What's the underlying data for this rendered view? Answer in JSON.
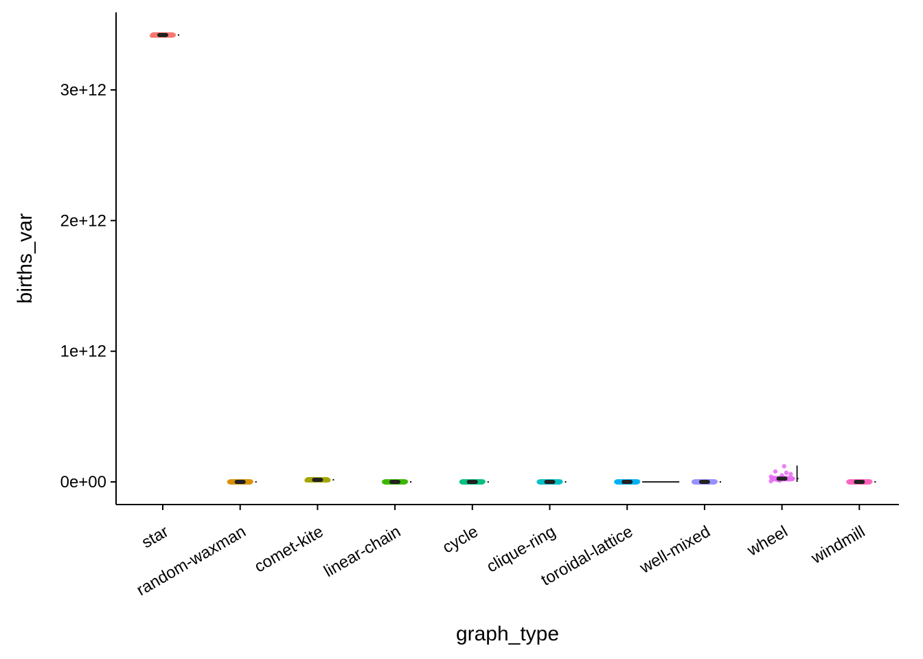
{
  "chart_data": {
    "type": "scatter",
    "title": "",
    "xlabel": "graph_type",
    "ylabel": "births_var",
    "ylim": [
      -175000000000.0,
      3600000000000.0
    ],
    "y_ticks": [
      0,
      1000000000000.0,
      2000000000000.0,
      3000000000000.0
    ],
    "y_tick_labels": [
      "0e+00",
      "1e+12",
      "2e+12",
      "3e+12"
    ],
    "grid": false,
    "legend": "none",
    "categories": [
      "star",
      "random-waxman",
      "comet-kite",
      "linear-chain",
      "cycle",
      "clique-ring",
      "toroidal-lattice",
      "well-mixed",
      "wheel",
      "windmill"
    ],
    "colors": [
      "#F8766D",
      "#D89000",
      "#A3A500",
      "#39B600",
      "#00BF7D",
      "#00BFC4",
      "#00B0F6",
      "#9590FF",
      "#E76BF3",
      "#FF62BC"
    ],
    "medians": [
      3420000000000.0,
      0,
      16000000000.0,
      0,
      0,
      0,
      0,
      0,
      25000000000.0,
      0
    ],
    "points": [
      [
        3415000000000.0,
        3418000000000.0,
        3420000000000.0,
        3421000000000.0,
        3423000000000.0,
        3419000000000.0,
        3422000000000.0,
        3417000000000.0,
        3420000000000.0,
        3424000000000.0
      ],
      [
        0,
        1000000000.0,
        2000000000.0,
        500000000.0,
        1500000000.0,
        0,
        1000000000.0,
        3000000000.0,
        2000000000.0,
        500000000.0
      ],
      [
        12000000000.0,
        15000000000.0,
        18000000000.0,
        16000000000.0,
        20000000000.0,
        14000000000.0,
        17000000000.0,
        19000000000.0,
        13000000000.0,
        22000000000.0
      ],
      [
        0,
        1000000000.0,
        2000000000.0,
        500000000.0,
        1500000000.0,
        0,
        1000000000.0,
        3000000000.0,
        2000000000.0,
        500000000.0
      ],
      [
        0,
        1000000000.0,
        2000000000.0,
        500000000.0,
        1500000000.0,
        0,
        1000000000.0,
        3000000000.0,
        2000000000.0,
        500000000.0
      ],
      [
        0,
        1000000000.0,
        2000000000.0,
        500000000.0,
        1500000000.0,
        0,
        1000000000.0,
        3000000000.0,
        2000000000.0,
        500000000.0
      ],
      [
        0,
        1000000000.0,
        2000000000.0,
        500000000.0,
        1500000000.0,
        0,
        1000000000.0,
        3000000000.0,
        2000000000.0,
        500000000.0
      ],
      [
        0,
        1000000000.0,
        2000000000.0,
        500000000.0,
        1500000000.0,
        0,
        1000000000.0,
        3000000000.0,
        2000000000.0,
        500000000.0
      ],
      [
        5000000000.0,
        10000000000.0,
        20000000000.0,
        30000000000.0,
        50000000000.0,
        60000000000.0,
        80000000000.0,
        120000000000.0,
        25000000000.0,
        15000000000.0,
        70000000000.0,
        40000000000.0
      ],
      [
        0,
        1000000000.0,
        2000000000.0,
        500000000.0,
        1500000000.0,
        0,
        1000000000.0,
        3000000000.0,
        2000000000.0,
        500000000.0
      ]
    ]
  }
}
